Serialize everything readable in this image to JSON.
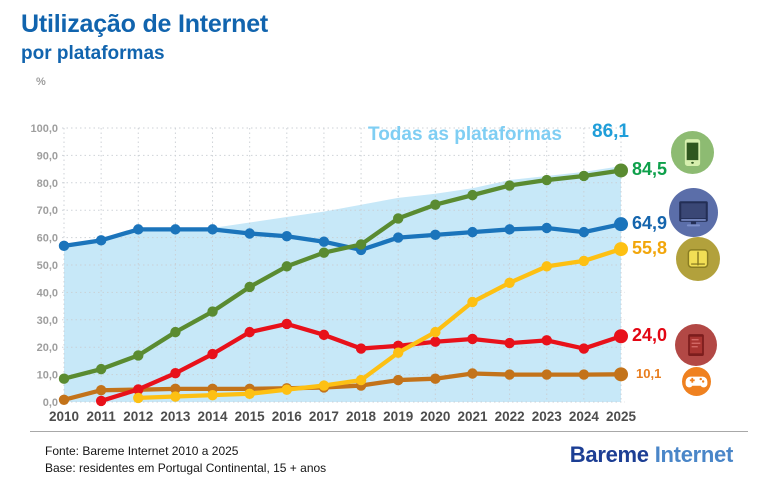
{
  "header": {
    "title": "Utilização de Internet",
    "subtitle": "por plataformas",
    "unit_label": "%"
  },
  "chart_data": {
    "type": "line",
    "x": [
      "2010",
      "2011",
      "2012",
      "2013",
      "2014",
      "2015",
      "2016",
      "2017",
      "2018",
      "2019",
      "2020",
      "2021",
      "2022",
      "2023",
      "2024",
      "2025"
    ],
    "ylim": [
      0,
      100
    ],
    "y_tick_values": [
      0,
      10,
      20,
      30,
      40,
      50,
      60,
      70,
      80,
      90,
      100
    ],
    "y_tick_labels": [
      "0,0",
      "10,0",
      "20,0",
      "30,0",
      "40,0",
      "50,0",
      "60,0",
      "70,0",
      "80,0",
      "90,0",
      "100,0"
    ],
    "grid": "dotted",
    "area_series": {
      "name": "todas-as-plataformas",
      "label": "Todas as plataformas",
      "label_color": "#7fcef3",
      "fill": "#c7e8f8",
      "end_label": "86,1",
      "end_label_color": "#1f9ed9",
      "values": [
        57.0,
        59.5,
        63.0,
        63.0,
        63.5,
        65.5,
        67.5,
        69.5,
        72.0,
        74.5,
        76.0,
        78.0,
        81.0,
        82.5,
        84.0,
        86.1
      ]
    },
    "series": [
      {
        "name": "gamepad",
        "icon": "gamepad-icon",
        "color": "#c3731a",
        "end_label": "10,1",
        "end_label_color": "#e87d1e",
        "values": [
          0.8,
          4.3,
          4.5,
          4.8,
          4.8,
          4.8,
          5.0,
          5.3,
          6.0,
          8.0,
          8.5,
          10.4,
          10.0,
          10.0,
          10.0,
          10.1
        ]
      },
      {
        "name": "tablet",
        "icon": "tablet-icon",
        "color": "#e8111a",
        "end_label": "24,0",
        "end_label_color": "#e30613",
        "values": [
          null,
          0.4,
          4.6,
          10.5,
          17.5,
          25.5,
          28.5,
          24.5,
          19.5,
          20.5,
          22.0,
          23.0,
          21.5,
          22.5,
          19.5,
          24.0
        ]
      },
      {
        "name": "ereader",
        "icon": "ereader-icon",
        "color": "#fdc013",
        "end_label": "55,8",
        "end_label_color": "#f2a60b",
        "values": [
          null,
          null,
          1.5,
          2.0,
          2.5,
          3.0,
          4.5,
          6.0,
          8.0,
          18.0,
          25.5,
          36.5,
          43.5,
          49.5,
          51.5,
          55.8
        ]
      },
      {
        "name": "computer",
        "icon": "computer-icon",
        "color": "#1b74bb",
        "end_label": "64,9",
        "end_label_color": "#1565ad",
        "values": [
          57.0,
          59.0,
          63.0,
          63.0,
          63.0,
          61.5,
          60.5,
          58.5,
          55.5,
          60.0,
          61.0,
          62.0,
          63.0,
          63.5,
          62.0,
          64.9
        ]
      },
      {
        "name": "smartphone",
        "icon": "smartphone-icon",
        "color": "#5a8b31",
        "end_label": "84,5",
        "end_label_color": "#0ea04b",
        "values": [
          8.5,
          12.0,
          17.0,
          25.5,
          33.0,
          42.0,
          49.5,
          54.5,
          57.5,
          67.0,
          72.0,
          75.5,
          79.0,
          81.0,
          82.5,
          84.5
        ]
      }
    ]
  },
  "platform_icons": [
    {
      "icon": "smartphone-icon",
      "circle_color": "#8dbb72"
    },
    {
      "icon": "computer-icon",
      "circle_color": "#5b6ea9"
    },
    {
      "icon": "ereader-icon",
      "circle_color": "#b2a13c"
    },
    {
      "icon": "tablet-icon",
      "circle_color": "#b24845"
    },
    {
      "icon": "gamepad-icon",
      "circle_color": "#ef8120"
    }
  ],
  "footer": {
    "source_line": "Fonte: Bareme Internet 2010 a 2025",
    "base_line": "Base: residentes em Portugal Continental, 15 + anos",
    "logo": {
      "part1": "Bareme",
      "part2": "Internet"
    }
  }
}
